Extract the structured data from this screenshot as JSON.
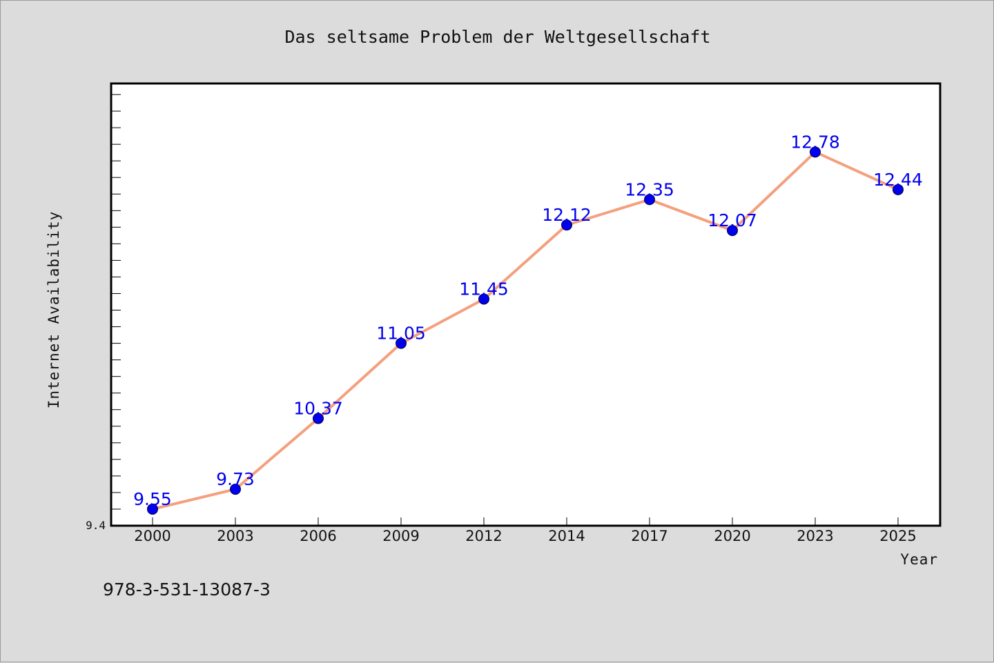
{
  "page": {
    "background": "#dcdcdc",
    "footer_text": "978-3-531-13087-3"
  },
  "chart_data": {
    "type": "line",
    "title": "Das seltsame Problem der Weltgesellschaft",
    "xlabel": "Year",
    "ylabel": "Internet Availability",
    "categories": [
      "2000",
      "2003",
      "2006",
      "2009",
      "2012",
      "2014",
      "2017",
      "2020",
      "2023",
      "2025"
    ],
    "series": [
      {
        "values": [
          9.55,
          9.73,
          10.37,
          11.05,
          11.45,
          12.12,
          12.35,
          12.07,
          12.78,
          12.44
        ],
        "labels": [
          "9.55",
          "9.73",
          "10.37",
          "11.05",
          "11.45",
          "12.12",
          "12.35",
          "12.07",
          "12.78",
          "12.44"
        ],
        "line_color": "#f4a07e",
        "marker_color": "#0000ee",
        "label_color": "#0000ee"
      }
    ],
    "y_tick_labels": [
      "9.4"
    ],
    "ylim": [
      9.4,
      13.4
    ],
    "grid": false,
    "legend": "none"
  }
}
